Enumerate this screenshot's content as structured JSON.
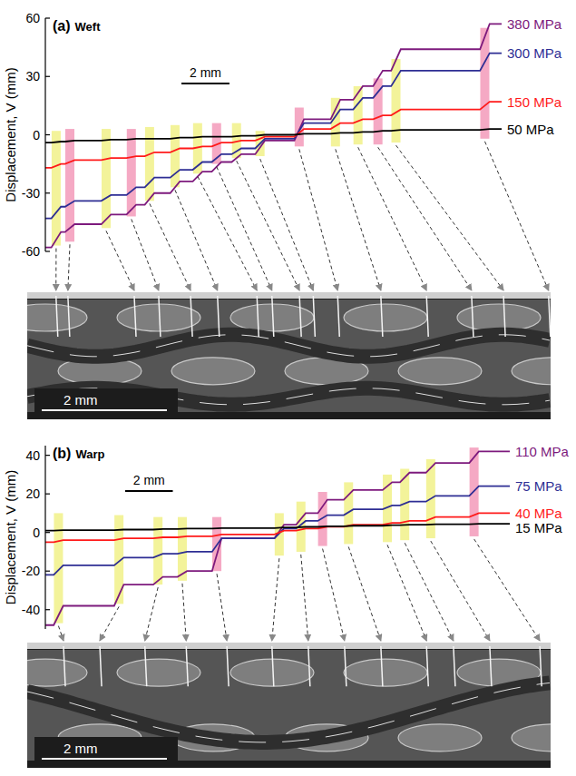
{
  "chart_data": [
    {
      "type": "line",
      "panel": "(a)",
      "title": "Weft",
      "y_label": "Displacement, V (mm)",
      "x": [
        0,
        0.25,
        0.65,
        0.82,
        1.22,
        2.33,
        2.73,
        3.38,
        3.78,
        4.14,
        4.54,
        5.2,
        5.6,
        6.14,
        6.54,
        6.93,
        7.33,
        7.76,
        8.16,
        8.74,
        9.14,
        10.37,
        10.77,
        11.88,
        12.28,
        12.82,
        13.22,
        13.65,
        14.05,
        14.4,
        14.8,
        18.1,
        18.5,
        19
      ],
      "xlim": [
        0,
        19
      ],
      "ylim": [
        -60,
        60
      ],
      "yticks": [
        -60,
        -30,
        0,
        30,
        60
      ],
      "tick_labels": "y",
      "grid": false,
      "series": [
        {
          "name": "380 MPa",
          "color": "#7d1a7d",
          "values": [
            -58,
            -58,
            -50,
            -50,
            -46,
            -46,
            -41,
            -41,
            -36,
            -36,
            -30,
            -30,
            -24,
            -24,
            -19,
            -19,
            -14,
            -14,
            -10,
            -10,
            -3,
            -3,
            8,
            8,
            18,
            18,
            25,
            25,
            33,
            33,
            44,
            44,
            57,
            57
          ]
        },
        {
          "name": "300 MPa",
          "color": "#2e2e94",
          "values": [
            -43,
            -43,
            -37,
            -37,
            -34,
            -34,
            -31,
            -31,
            -27,
            -27,
            -22,
            -22,
            -18,
            -18,
            -14,
            -14,
            -10,
            -10,
            -7,
            -7,
            -2,
            -2,
            6,
            6,
            13,
            13,
            19,
            19,
            25,
            25,
            33,
            33,
            42,
            42
          ]
        },
        {
          "name": "150 MPa",
          "color": "#ff1a1a",
          "values": [
            -17,
            -17,
            -15,
            -15,
            -13,
            -13,
            -12,
            -12,
            -11,
            -11,
            -9,
            -9,
            -7,
            -7,
            -6,
            -6,
            -4,
            -4,
            -3,
            -3,
            -1,
            -1,
            3,
            3,
            6,
            6,
            8,
            8,
            10,
            10,
            13,
            13,
            17,
            17
          ]
        },
        {
          "name": "50 MPa",
          "color": "#000000",
          "values": [
            -4,
            -4,
            -3.5,
            -3.5,
            -3,
            -3,
            -2.5,
            -2.5,
            -2,
            -2,
            -2,
            -2,
            -1.5,
            -1.5,
            -1,
            -1,
            -1,
            -1,
            -0.5,
            -0.5,
            0,
            0,
            0.5,
            0.5,
            1,
            1,
            1.5,
            1.5,
            2,
            2,
            2.5,
            2.5,
            3,
            3
          ]
        }
      ],
      "scale_bar": {
        "length": 2,
        "label": "2 mm"
      },
      "bands": [
        {
          "x": 0.45,
          "low": -57,
          "high": 2,
          "color": "#f3f39a",
          "image_x": 0.46
        },
        {
          "x": 1.02,
          "low": -55,
          "high": 3,
          "color": "#f5a9c4",
          "image_x": 0.65
        },
        {
          "x": 2.53,
          "low": -48,
          "high": 3,
          "color": "#f3f39a",
          "image_x": 1.71
        },
        {
          "x": 3.58,
          "low": -42,
          "high": 3,
          "color": "#f5a9c4",
          "image_x": 2.1
        },
        {
          "x": 4.34,
          "low": -34,
          "high": 4,
          "color": "#f3f39a",
          "image_x": 2.61
        },
        {
          "x": 5.4,
          "low": -27,
          "high": 5,
          "color": "#f3f39a",
          "image_x": 3.04
        },
        {
          "x": 6.34,
          "low": -20,
          "high": 6,
          "color": "#f3f39a",
          "image_x": 3.67
        },
        {
          "x": 7.13,
          "low": -15,
          "high": 6,
          "color": "#f5a9c4",
          "image_x": 3.91
        },
        {
          "x": 7.96,
          "low": -12,
          "high": 6,
          "color": "#f3f39a",
          "image_x": 4.35
        },
        {
          "x": 8.94,
          "low": -11,
          "high": 2,
          "color": "#f3f39a",
          "image_x": 4.57
        },
        {
          "x": 10.57,
          "low": -6,
          "high": 14,
          "color": "#f5a9c4",
          "image_x": 4.96
        },
        {
          "x": 12.08,
          "low": -6,
          "high": 19,
          "color": "#f3f39a",
          "image_x": 5.65
        },
        {
          "x": 13.02,
          "low": -5,
          "high": 25,
          "color": "#f3f39a",
          "image_x": 6.38
        },
        {
          "x": 13.85,
          "low": -5,
          "high": 29,
          "color": "#f5a9c4",
          "image_x": 7.1
        },
        {
          "x": 14.6,
          "low": -4,
          "high": 39,
          "color": "#f3f39a",
          "image_x": 7.61
        },
        {
          "x": 18.3,
          "low": -2,
          "high": 55,
          "color": "#f5a9c4",
          "image_x": 8.33
        }
      ],
      "micrograph": {
        "scale_length": 2,
        "scale_label": "2 mm"
      }
    },
    {
      "type": "line",
      "panel": "(b)",
      "title": "Warp",
      "y_label": "Displacement, V (mm)",
      "x": [
        0,
        0.35,
        0.75,
        2.89,
        3.29,
        4.53,
        4.93,
        5.55,
        5.95,
        7.0,
        7.4,
        9.62,
        10.02,
        10.53,
        10.93,
        11.44,
        11.84,
        12.53,
        12.93,
        14.16,
        14.56,
        14.89,
        15.29,
        15.98,
        16.38,
        17.8,
        18.2,
        19.5
      ],
      "xlim": [
        0,
        19.5
      ],
      "ylim": [
        -50,
        45
      ],
      "yticks": [
        -40,
        -20,
        0,
        20,
        40
      ],
      "tick_labels": "y",
      "grid": false,
      "series": [
        {
          "name": "110 MPa",
          "color": "#7d1a7d",
          "values": [
            -48,
            -48,
            -38,
            -38,
            -27,
            -27,
            -23,
            -23,
            -20,
            -20,
            -3,
            -3,
            4,
            4,
            10,
            10,
            17,
            17,
            22,
            22,
            26,
            26,
            31,
            31,
            36,
            36,
            42,
            42
          ]
        },
        {
          "name": "75 MPa",
          "color": "#2e2e94",
          "values": [
            -22,
            -22,
            -17,
            -17,
            -13,
            -13,
            -11,
            -11,
            -10,
            -10,
            -3,
            -3,
            2,
            2,
            6,
            6,
            9,
            9,
            12,
            12,
            14,
            14,
            16,
            16,
            19,
            19,
            24,
            24
          ]
        },
        {
          "name": "40 MPa",
          "color": "#ff1a1a",
          "values": [
            -5,
            -5,
            -4,
            -4,
            -3,
            -3,
            -2.5,
            -2.5,
            -2,
            -2,
            -1,
            -1,
            1,
            1,
            2,
            2,
            3,
            3,
            4,
            4,
            5,
            5,
            6,
            6,
            8,
            8,
            10,
            10
          ]
        },
        {
          "name": "15 MPa",
          "color": "#000000",
          "values": [
            1,
            1,
            1.2,
            1.2,
            1.5,
            1.5,
            1.8,
            1.8,
            2,
            2,
            2.3,
            2.3,
            2.6,
            2.6,
            2.9,
            2.9,
            3.2,
            3.2,
            3.5,
            3.5,
            3.8,
            3.8,
            4,
            4,
            4.3,
            4.3,
            4.5,
            4.5
          ]
        }
      ],
      "scale_bar": {
        "length": 2,
        "label": "2 mm"
      },
      "bands": [
        {
          "x": 0.55,
          "low": -47,
          "high": 10,
          "color": "#f3f39a",
          "image_x": 0.58
        },
        {
          "x": 3.09,
          "low": -37,
          "high": 9,
          "color": "#f3f39a",
          "image_x": 1.16
        },
        {
          "x": 4.73,
          "low": -27,
          "high": 8,
          "color": "#f3f39a",
          "image_x": 1.88
        },
        {
          "x": 5.75,
          "low": -25,
          "high": 8,
          "color": "#f3f39a",
          "image_x": 2.54
        },
        {
          "x": 7.2,
          "low": -20,
          "high": 8,
          "color": "#f5a9c4",
          "image_x": 3.19
        },
        {
          "x": 9.82,
          "low": -12,
          "high": 10,
          "color": "#f3f39a",
          "image_x": 3.91
        },
        {
          "x": 10.73,
          "low": -10,
          "high": 16,
          "color": "#f3f39a",
          "image_x": 4.49
        },
        {
          "x": 11.64,
          "low": -7,
          "high": 21,
          "color": "#f5a9c4",
          "image_x": 5.07
        },
        {
          "x": 12.73,
          "low": -6,
          "high": 26,
          "color": "#f3f39a",
          "image_x": 5.65
        },
        {
          "x": 14.36,
          "low": -5,
          "high": 30,
          "color": "#f3f39a",
          "image_x": 6.38
        },
        {
          "x": 15.09,
          "low": -4,
          "high": 33,
          "color": "#f3f39a",
          "image_x": 6.81
        },
        {
          "x": 16.18,
          "low": -3,
          "high": 38,
          "color": "#f3f39a",
          "image_x": 7.39
        },
        {
          "x": 18,
          "low": -2,
          "high": 44,
          "color": "#f5a9c4",
          "image_x": 8.19
        }
      ],
      "micrograph": {
        "scale_length": 2,
        "scale_label": "2 mm"
      }
    }
  ]
}
